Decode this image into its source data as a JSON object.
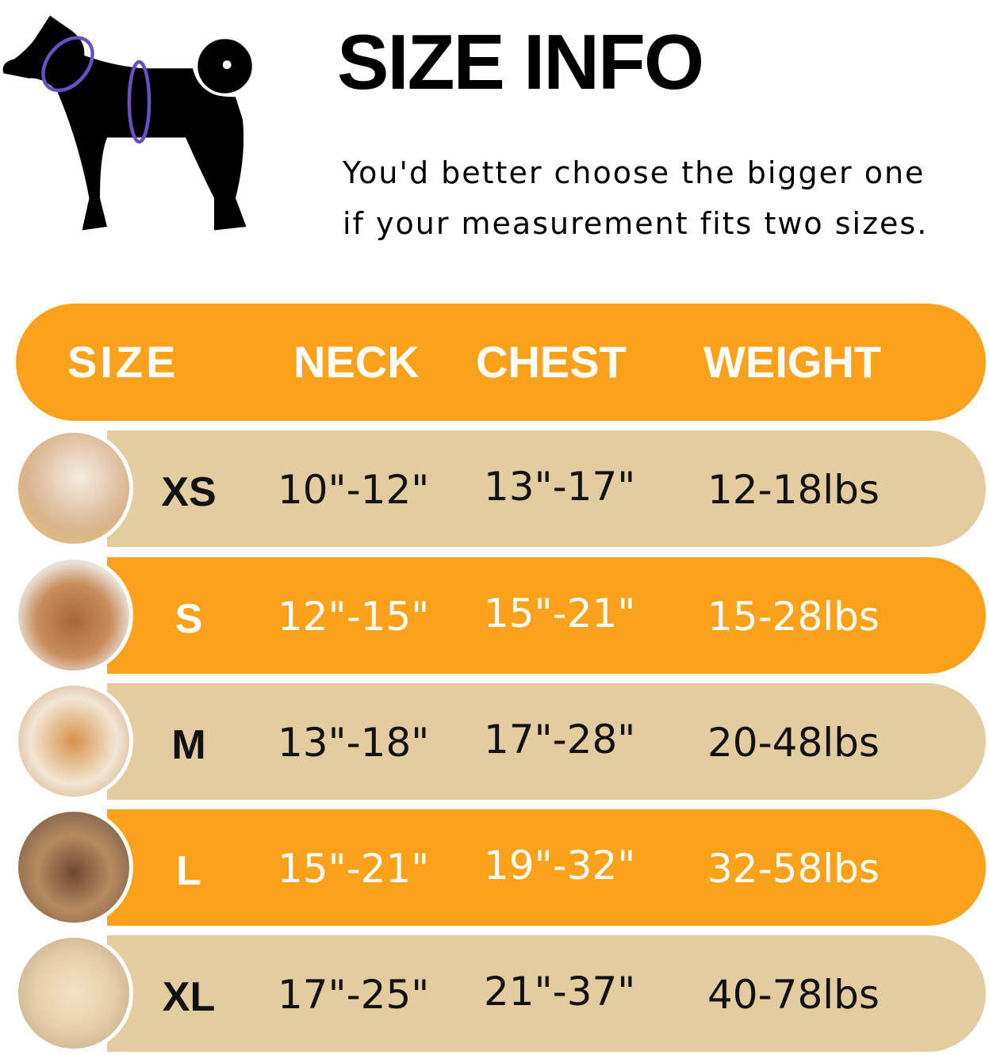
{
  "title": "SIZE INFO",
  "subtitle_lines": [
    "You'd better choose the bigger one",
    "if your measurement fits two sizes."
  ],
  "colors": {
    "orange": "#FBA21A",
    "tan": "#E2CCA0",
    "measure_ring": "#6A4FC4"
  },
  "table": {
    "headers": [
      "SIZE",
      "NECK",
      "CHEST",
      "WEIGHT"
    ],
    "rows": [
      {
        "size": "XS",
        "neck": "10\"-12\"",
        "chest": "13\"-17\"",
        "weight": "12-18lbs"
      },
      {
        "size": "S",
        "neck": "12\"-15\"",
        "chest": "15\"-21\"",
        "weight": "15-28lbs"
      },
      {
        "size": "M",
        "neck": "13\"-18\"",
        "chest": "17\"-28\"",
        "weight": "20-48lbs"
      },
      {
        "size": "L",
        "neck": "15\"-21\"",
        "chest": "19\"-32\"",
        "weight": "32-58lbs"
      },
      {
        "size": "XL",
        "neck": "17\"-25\"",
        "chest": "21\"-37\"",
        "weight": "40-78lbs"
      }
    ]
  }
}
